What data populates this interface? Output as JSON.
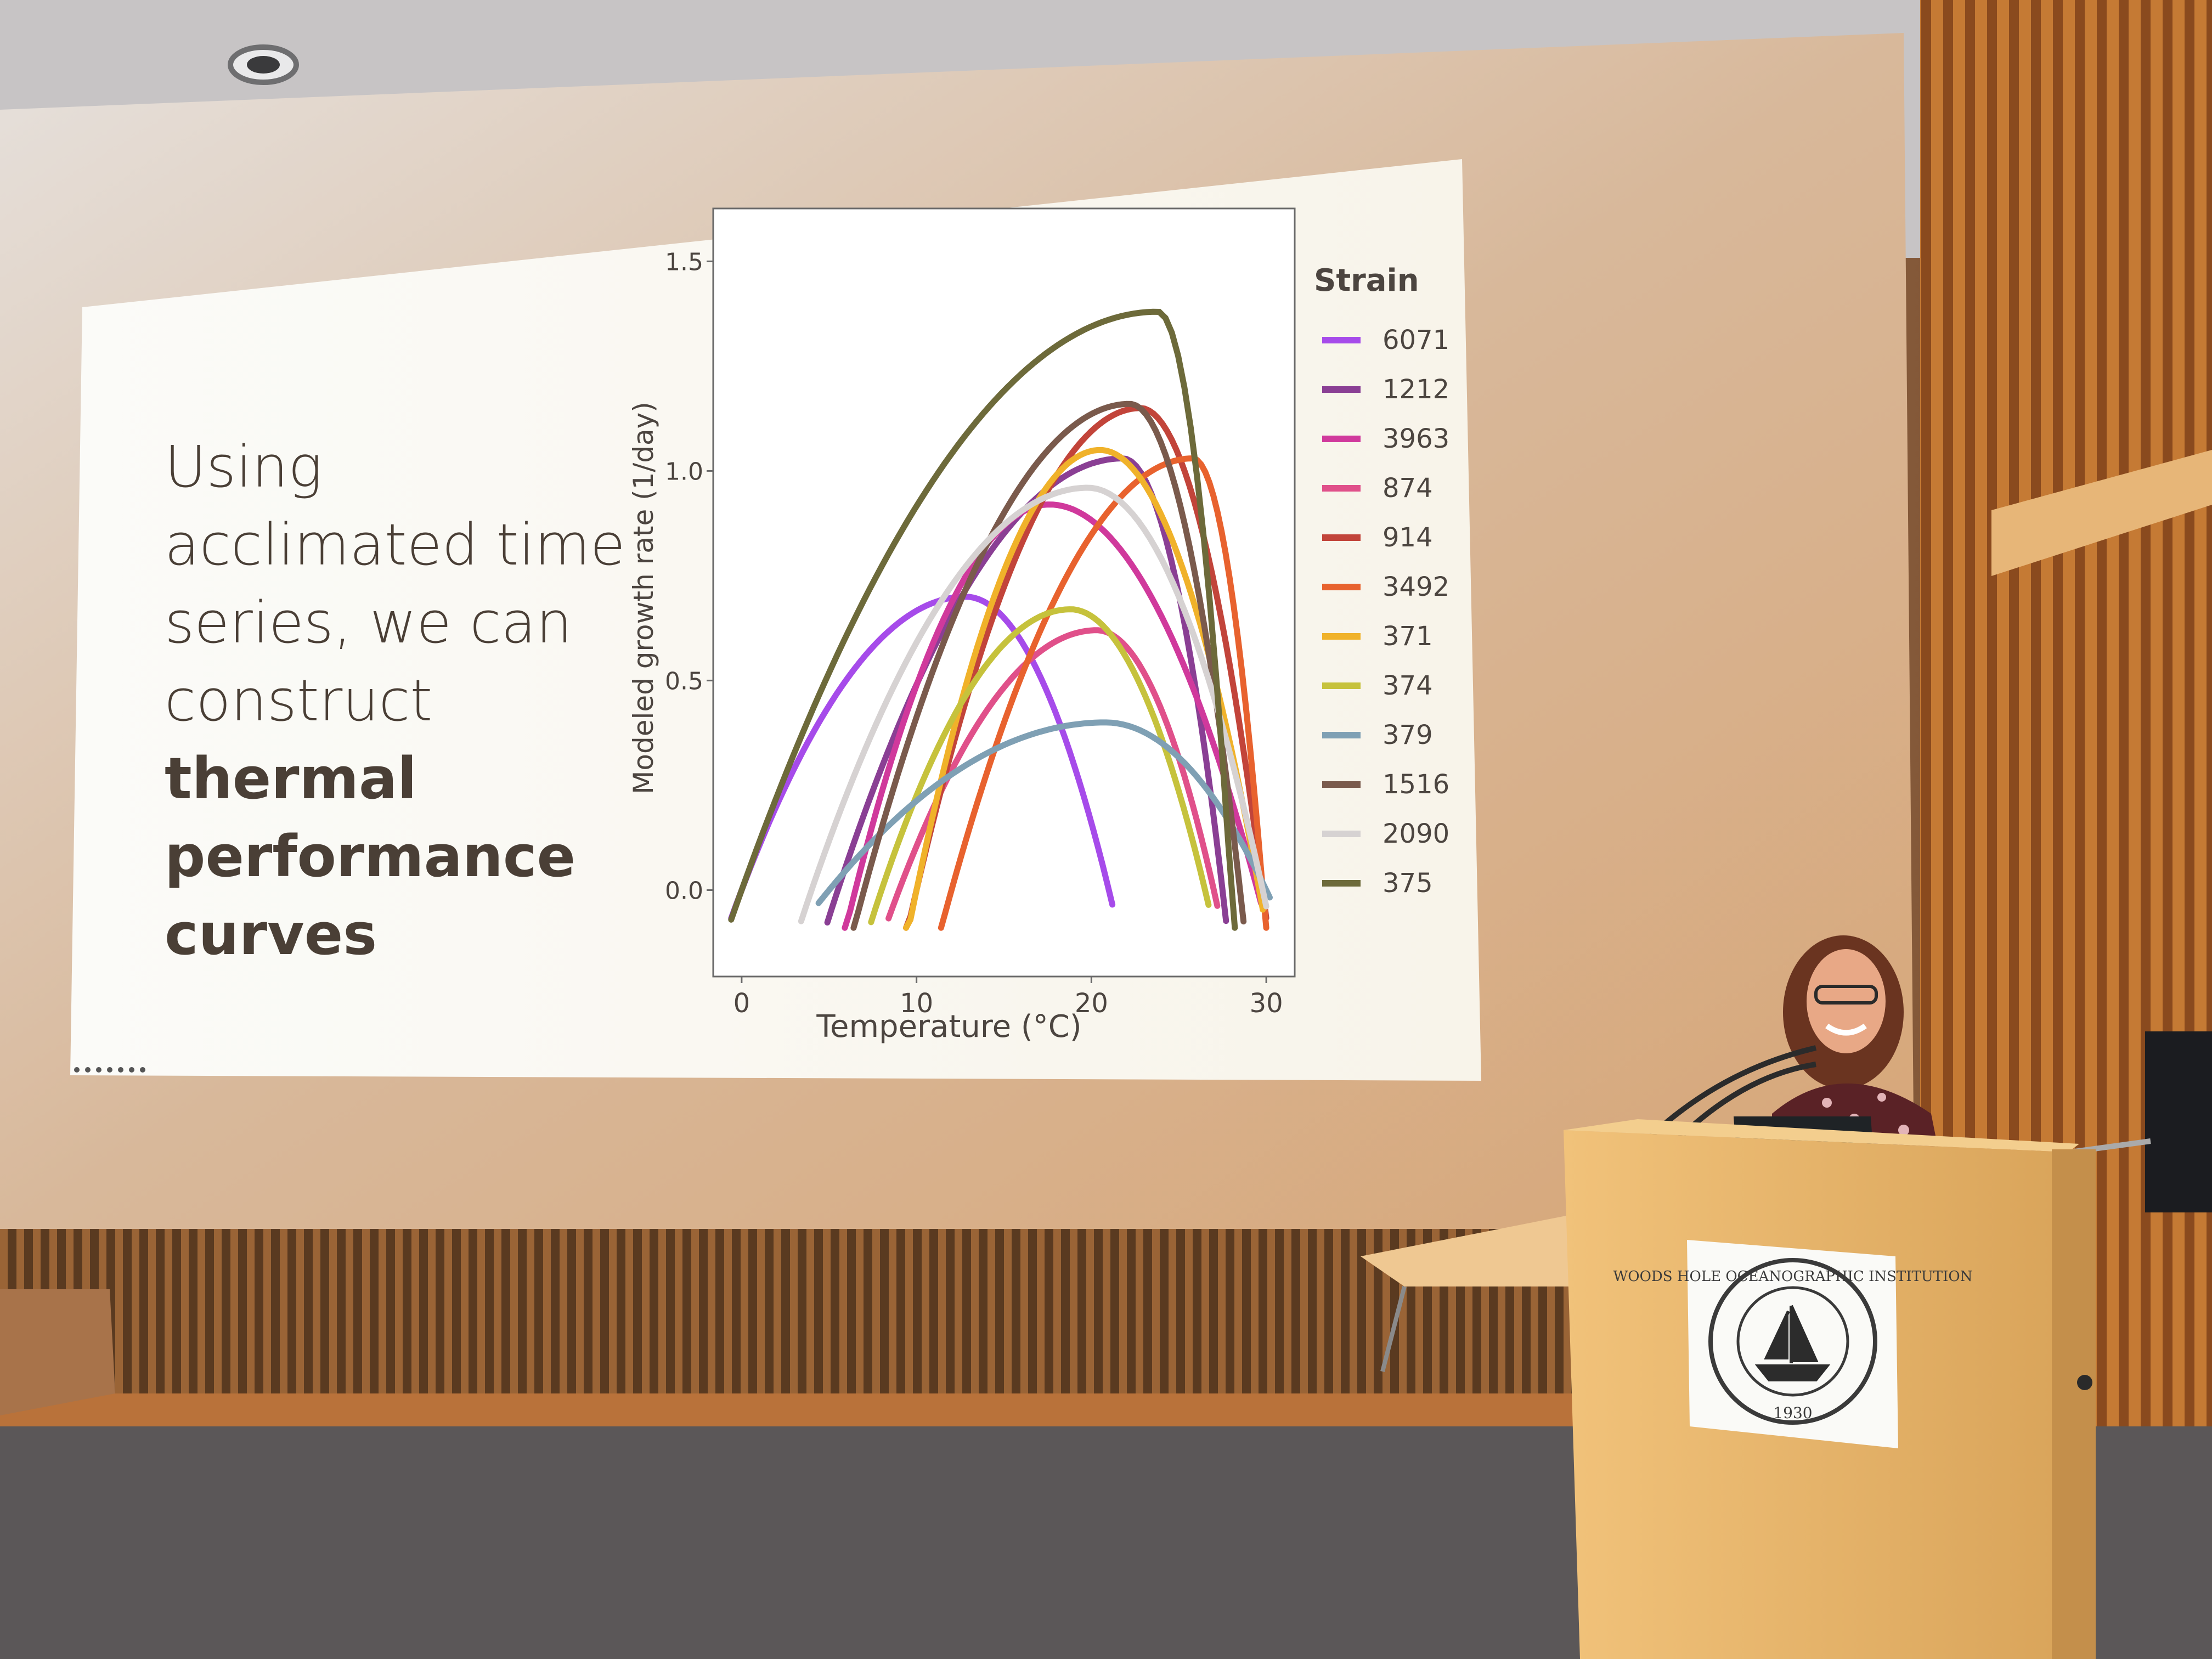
{
  "slide": {
    "text_line1": "Using",
    "text_line2": "acclimated time",
    "text_line3": "series, we can",
    "text_line4": "construct",
    "text_bold1": "thermal",
    "text_bold2": "performance",
    "text_bold3": "curves"
  },
  "seal": {
    "text": "WOODS HOLE OCEANOGRAPHIC INSTITUTION",
    "year": "1930"
  },
  "chart_data": {
    "type": "line",
    "xlabel": "Temperature (°C)",
    "ylabel": "Modeled growth rate (1/day)",
    "xlim": [
      -1,
      31
    ],
    "ylim": [
      -0.18,
      1.6
    ],
    "xticks": [
      "0",
      "10",
      "20",
      "30"
    ],
    "xtick_values": [
      0,
      10,
      20,
      30
    ],
    "yticks": [
      "0.0",
      "0.5",
      "1.0",
      "1.5"
    ],
    "ytick_values": [
      0,
      0.5,
      1.0,
      1.5
    ],
    "legend_title": "Strain",
    "legend_position": "right",
    "series": [
      {
        "name": "6071",
        "color": "#a64bea",
        "tmin": 0,
        "topt": 12.8,
        "ymax": 0.7,
        "tmax": 21
      },
      {
        "name": "1212",
        "color": "#8a3f94",
        "tmin": 5.5,
        "topt": 21.8,
        "ymax": 1.03,
        "tmax": 27.5
      },
      {
        "name": "3963",
        "color": "#d0399c",
        "tmin": 6.5,
        "topt": 17.6,
        "ymax": 0.92,
        "tmax": 29.5
      },
      {
        "name": "874",
        "color": "#e0508a",
        "tmin": 9,
        "topt": 20.3,
        "ymax": 0.62,
        "tmax": 27
      },
      {
        "name": "914",
        "color": "#c2443a",
        "tmin": 10,
        "topt": 22.8,
        "ymax": 1.15,
        "tmax": 29.8
      },
      {
        "name": "3492",
        "color": "#e8622e",
        "tmin": 12,
        "topt": 25.8,
        "ymax": 1.03,
        "tmax": 29.8
      },
      {
        "name": "371",
        "color": "#f0b22a",
        "tmin": 10,
        "topt": 20.5,
        "ymax": 1.05,
        "tmax": 29.6
      },
      {
        "name": "374",
        "color": "#c6c23c",
        "tmin": 8,
        "topt": 18.8,
        "ymax": 0.67,
        "tmax": 26.5
      },
      {
        "name": "379",
        "color": "#7fa0b4",
        "tmin": 5,
        "topt": 20.8,
        "ymax": 0.4,
        "tmax": 30
      },
      {
        "name": "1516",
        "color": "#7a5a4c",
        "tmin": 7,
        "topt": 22.2,
        "ymax": 1.16,
        "tmax": 28.5
      },
      {
        "name": "2090",
        "color": "#d6d2d2",
        "tmin": 4,
        "topt": 19.8,
        "ymax": 0.96,
        "tmax": 29.8
      },
      {
        "name": "375",
        "color": "#6d6a3a",
        "tmin": 0,
        "topt": 23.8,
        "ymax": 1.38,
        "tmax": 28
      }
    ]
  },
  "colors": {
    "wall": "#8a6244",
    "screen": "#fbfaf5",
    "podium": "#e8b868",
    "floor": "#5b5758"
  }
}
